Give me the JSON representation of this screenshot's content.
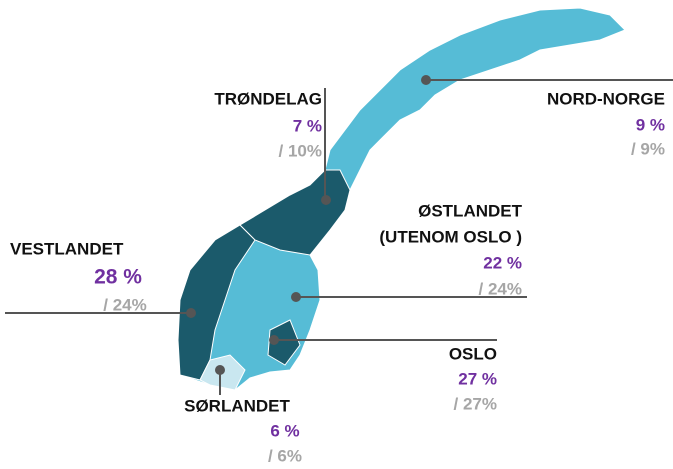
{
  "regions": [
    {
      "name": "TRØNDELAG",
      "value": "7 %",
      "compare": "/ 10%"
    },
    {
      "name": "NORD-NORGE",
      "value": "9 %",
      "compare": "/ 9%"
    },
    {
      "name": "ØSTLANDET",
      "subname": "(UTENOM OSLO )",
      "value": "22 %",
      "compare": "/ 24%"
    },
    {
      "name": "VESTLANDET",
      "value": "28 %",
      "compare": "/ 24%"
    },
    {
      "name": "OSLO",
      "value": "27 %",
      "compare": "/ 27%"
    },
    {
      "name": "SØRLANDET",
      "value": "6 %",
      "compare": "/ 6%"
    }
  ]
}
